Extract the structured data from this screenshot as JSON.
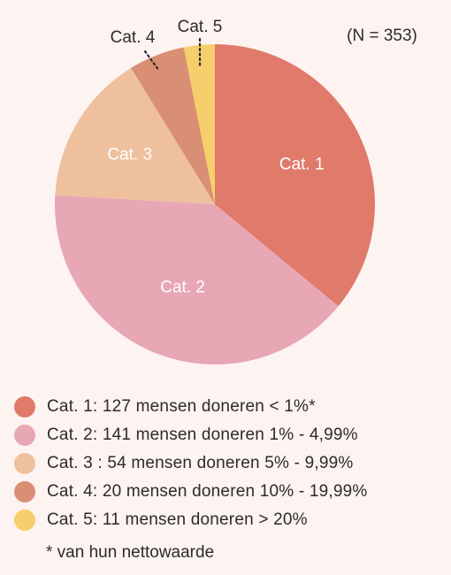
{
  "chart_data": {
    "type": "pie",
    "sample_size_label": "(N = 353)",
    "slices": [
      {
        "label": "Cat. 1",
        "value": 127,
        "color": "#e07a6b",
        "label_color": "#ffffff"
      },
      {
        "label": "Cat. 2",
        "value": 141,
        "color": "#e8a7b5",
        "label_color": "#ffffff"
      },
      {
        "label": "Cat. 3",
        "value": 54,
        "color": "#efc09e",
        "label_color": "#ffffff"
      },
      {
        "label": "Cat. 4",
        "value": 20,
        "color": "#d98f74",
        "label_color": "#2b2b2b"
      },
      {
        "label": "Cat. 5",
        "value": 11,
        "color": "#f6cf6c",
        "label_color": "#2b2b2b"
      }
    ],
    "start_angle_deg": 0,
    "direction": "clockwise"
  },
  "legend": {
    "items": [
      {
        "text": "Cat. 1: 127 mensen doneren < 1%*",
        "color": "#e07a6b"
      },
      {
        "text": "Cat. 2: 141 mensen doneren 1% - 4,99%",
        "color": "#e8a7b5"
      },
      {
        "text": "Cat. 3 : 54 mensen doneren 5% - 9,99%",
        "color": "#efc09e"
      },
      {
        "text": "Cat. 4: 20 mensen doneren 10% - 19,99%",
        "color": "#d98f74"
      },
      {
        "text": "Cat. 5: 11 mensen doneren > 20%",
        "color": "#f6cf6c"
      }
    ]
  },
  "footnote": "* van hun nettowaarde"
}
